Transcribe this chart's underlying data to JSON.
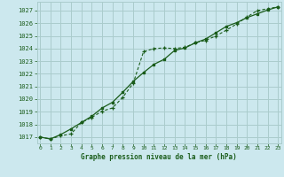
{
  "title": "Graphe pression niveau de la mer (hPa)",
  "bg_color": "#cce8ee",
  "grid_color": "#aacccc",
  "line_color": "#1a5c1a",
  "xlim": [
    -0.3,
    23.3
  ],
  "ylim": [
    1016.5,
    1027.7
  ],
  "yticks": [
    1017,
    1018,
    1019,
    1020,
    1021,
    1022,
    1023,
    1024,
    1025,
    1026,
    1027
  ],
  "xticks": [
    0,
    1,
    2,
    3,
    4,
    5,
    6,
    7,
    8,
    9,
    10,
    11,
    12,
    13,
    14,
    15,
    16,
    17,
    18,
    19,
    20,
    21,
    22,
    23
  ],
  "series1_x": [
    0,
    1,
    2,
    3,
    4,
    5,
    6,
    7,
    8,
    9,
    10,
    11,
    12,
    13,
    14,
    15,
    16,
    17,
    18,
    19,
    20,
    21,
    22,
    23
  ],
  "series1_y": [
    1017.0,
    1016.85,
    1017.1,
    1017.25,
    1018.15,
    1018.55,
    1019.05,
    1019.3,
    1020.15,
    1021.25,
    1023.75,
    1024.0,
    1024.05,
    1024.0,
    1024.1,
    1024.45,
    1024.65,
    1025.0,
    1025.45,
    1025.95,
    1026.5,
    1027.0,
    1027.15,
    1027.3
  ],
  "series2_x": [
    0,
    1,
    2,
    3,
    4,
    5,
    6,
    7,
    8,
    9,
    10,
    11,
    12,
    13,
    14,
    15,
    16,
    17,
    18,
    19,
    20,
    21,
    22,
    23
  ],
  "series2_y": [
    1017.0,
    1016.85,
    1017.2,
    1017.65,
    1018.15,
    1018.65,
    1019.3,
    1019.75,
    1020.55,
    1021.4,
    1022.1,
    1022.75,
    1023.15,
    1023.85,
    1024.05,
    1024.45,
    1024.75,
    1025.25,
    1025.75,
    1026.05,
    1026.45,
    1026.75,
    1027.05,
    1027.3
  ]
}
